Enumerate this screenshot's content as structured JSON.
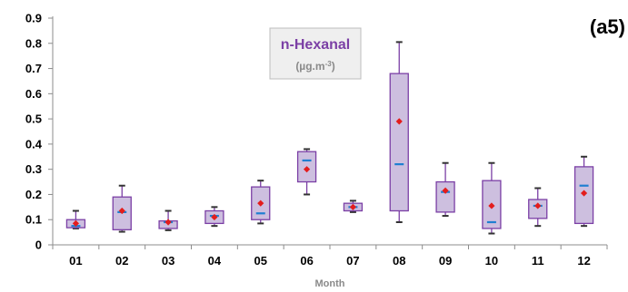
{
  "chart_data": {
    "type": "box",
    "panel_tag": "(a5)",
    "title": "n-Hexanal",
    "unit_text": "(µg.m",
    "unit_exp": "-3",
    "unit_close": ")",
    "xlabel": "Month",
    "ylabel": "",
    "ylim": [
      0,
      0.9
    ],
    "yticks": [
      "0",
      "0.1",
      "0.2",
      "0.3",
      "0.4",
      "0.5",
      "0.6",
      "0.7",
      "0.8",
      "0.9"
    ],
    "categories": [
      "01",
      "02",
      "03",
      "04",
      "05",
      "06",
      "07",
      "08",
      "09",
      "10",
      "11",
      "12"
    ],
    "min": [
      0.065,
      0.052,
      0.058,
      0.075,
      0.085,
      0.2,
      0.13,
      0.09,
      0.115,
      0.045,
      0.075,
      0.075
    ],
    "q1": [
      0.068,
      0.06,
      0.065,
      0.085,
      0.1,
      0.25,
      0.135,
      0.135,
      0.13,
      0.065,
      0.105,
      0.085
    ],
    "median": [
      0.075,
      0.13,
      0.09,
      0.115,
      0.125,
      0.335,
      0.15,
      0.32,
      0.21,
      0.09,
      0.155,
      0.235
    ],
    "q3": [
      0.1,
      0.19,
      0.095,
      0.135,
      0.23,
      0.37,
      0.165,
      0.68,
      0.25,
      0.255,
      0.18,
      0.31
    ],
    "max": [
      0.135,
      0.235,
      0.135,
      0.15,
      0.255,
      0.38,
      0.175,
      0.805,
      0.325,
      0.325,
      0.225,
      0.35
    ],
    "mean": [
      0.085,
      0.135,
      0.09,
      0.11,
      0.165,
      0.3,
      0.15,
      0.49,
      0.215,
      0.155,
      0.155,
      0.205
    ],
    "colors": {
      "box_fill": "#cdbfdf",
      "box_stroke": "#7b3fa5",
      "median": "#1f7fd1",
      "mean": "#e31d1d",
      "axis": "#8c8c8c",
      "title_box_fill": "#efefef",
      "title_box_stroke": "#bdbdbd"
    }
  }
}
